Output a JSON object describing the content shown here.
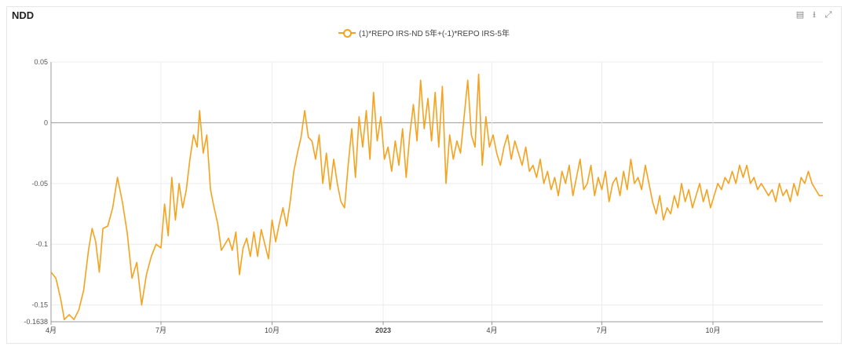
{
  "panel": {
    "title": "NDD",
    "tools": [
      {
        "name": "data-view-icon",
        "glyph": "▤"
      },
      {
        "name": "download-icon",
        "glyph": "⭳"
      },
      {
        "name": "expand-icon",
        "glyph": "⤢"
      }
    ]
  },
  "chart_data": {
    "type": "line",
    "title": "",
    "xlabel": "",
    "ylabel": "",
    "ylim": [
      -0.1638,
      0.05
    ],
    "y_ticks": [
      {
        "value": 0.05,
        "label": "0.05"
      },
      {
        "value": 0,
        "label": "0"
      },
      {
        "value": -0.05,
        "label": "-0.05"
      },
      {
        "value": -0.1,
        "label": "-0.1"
      },
      {
        "value": -0.15,
        "label": "-0.15"
      },
      {
        "value": -0.1638,
        "label": "-0.1638"
      }
    ],
    "x_range": [
      "2022-04-01",
      "2023-12-31"
    ],
    "x_ticks": [
      {
        "date": "2022-04-01",
        "label": "4月",
        "bold": false
      },
      {
        "date": "2022-07-01",
        "label": "7月",
        "bold": false
      },
      {
        "date": "2022-10-01",
        "label": "10月",
        "bold": false
      },
      {
        "date": "2023-01-01",
        "label": "2023",
        "bold": true
      },
      {
        "date": "2023-04-01",
        "label": "4月",
        "bold": false
      },
      {
        "date": "2023-07-01",
        "label": "7月",
        "bold": false
      },
      {
        "date": "2023-10-01",
        "label": "10月",
        "bold": false
      }
    ],
    "grid": true,
    "legend_position": "top-center",
    "series": [
      {
        "name": "(1)*REPO IRS-ND 5年+(-1)*REPO IRS-5年",
        "color": "#f5a21e",
        "points": [
          [
            "2022-04-01",
            -0.123
          ],
          [
            "2022-04-05",
            -0.128
          ],
          [
            "2022-04-09",
            -0.145
          ],
          [
            "2022-04-12",
            -0.162
          ],
          [
            "2022-04-16",
            -0.158
          ],
          [
            "2022-04-20",
            -0.162
          ],
          [
            "2022-04-24",
            -0.154
          ],
          [
            "2022-04-28",
            -0.138
          ],
          [
            "2022-05-02",
            -0.105
          ],
          [
            "2022-05-05",
            -0.087
          ],
          [
            "2022-05-08",
            -0.098
          ],
          [
            "2022-05-11",
            -0.123
          ],
          [
            "2022-05-14",
            -0.087
          ],
          [
            "2022-05-18",
            -0.085
          ],
          [
            "2022-05-22",
            -0.07
          ],
          [
            "2022-05-26",
            -0.045
          ],
          [
            "2022-05-30",
            -0.065
          ],
          [
            "2022-06-03",
            -0.09
          ],
          [
            "2022-06-07",
            -0.128
          ],
          [
            "2022-06-11",
            -0.115
          ],
          [
            "2022-06-15",
            -0.15
          ],
          [
            "2022-06-19",
            -0.125
          ],
          [
            "2022-06-23",
            -0.11
          ],
          [
            "2022-06-27",
            -0.1
          ],
          [
            "2022-07-01",
            -0.103
          ],
          [
            "2022-07-04",
            -0.067
          ],
          [
            "2022-07-07",
            -0.093
          ],
          [
            "2022-07-10",
            -0.045
          ],
          [
            "2022-07-13",
            -0.08
          ],
          [
            "2022-07-16",
            -0.05
          ],
          [
            "2022-07-19",
            -0.07
          ],
          [
            "2022-07-22",
            -0.055
          ],
          [
            "2022-07-25",
            -0.03
          ],
          [
            "2022-07-28",
            -0.01
          ],
          [
            "2022-07-31",
            -0.02
          ],
          [
            "2022-08-02",
            0.01
          ],
          [
            "2022-08-05",
            -0.025
          ],
          [
            "2022-08-08",
            -0.01
          ],
          [
            "2022-08-11",
            -0.055
          ],
          [
            "2022-08-14",
            -0.07
          ],
          [
            "2022-08-17",
            -0.083
          ],
          [
            "2022-08-20",
            -0.105
          ],
          [
            "2022-08-23",
            -0.1
          ],
          [
            "2022-08-26",
            -0.095
          ],
          [
            "2022-08-29",
            -0.105
          ],
          [
            "2022-09-01",
            -0.09
          ],
          [
            "2022-09-04",
            -0.125
          ],
          [
            "2022-09-07",
            -0.103
          ],
          [
            "2022-09-10",
            -0.095
          ],
          [
            "2022-09-13",
            -0.11
          ],
          [
            "2022-09-16",
            -0.09
          ],
          [
            "2022-09-19",
            -0.11
          ],
          [
            "2022-09-22",
            -0.088
          ],
          [
            "2022-09-25",
            -0.1
          ],
          [
            "2022-09-28",
            -0.112
          ],
          [
            "2022-10-01",
            -0.08
          ],
          [
            "2022-10-04",
            -0.098
          ],
          [
            "2022-10-07",
            -0.083
          ],
          [
            "2022-10-10",
            -0.07
          ],
          [
            "2022-10-13",
            -0.085
          ],
          [
            "2022-10-16",
            -0.065
          ],
          [
            "2022-10-19",
            -0.04
          ],
          [
            "2022-10-22",
            -0.025
          ],
          [
            "2022-10-25",
            -0.012
          ],
          [
            "2022-10-28",
            0.01
          ],
          [
            "2022-10-31",
            -0.012
          ],
          [
            "2022-11-03",
            -0.015
          ],
          [
            "2022-11-06",
            -0.03
          ],
          [
            "2022-11-09",
            -0.01
          ],
          [
            "2022-11-12",
            -0.05
          ],
          [
            "2022-11-15",
            -0.025
          ],
          [
            "2022-11-18",
            -0.055
          ],
          [
            "2022-11-21",
            -0.03
          ],
          [
            "2022-11-24",
            -0.05
          ],
          [
            "2022-11-27",
            -0.065
          ],
          [
            "2022-11-30",
            -0.07
          ],
          [
            "2022-12-03",
            -0.035
          ],
          [
            "2022-12-06",
            -0.005
          ],
          [
            "2022-12-09",
            -0.045
          ],
          [
            "2022-12-12",
            0.005
          ],
          [
            "2022-12-15",
            -0.02
          ],
          [
            "2022-12-18",
            0.01
          ],
          [
            "2022-12-21",
            -0.03
          ],
          [
            "2022-12-24",
            0.025
          ],
          [
            "2022-12-27",
            -0.015
          ],
          [
            "2022-12-30",
            0.005
          ],
          [
            "2023-01-02",
            -0.03
          ],
          [
            "2023-01-05",
            -0.02
          ],
          [
            "2023-01-08",
            -0.04
          ],
          [
            "2023-01-11",
            -0.015
          ],
          [
            "2023-01-14",
            -0.035
          ],
          [
            "2023-01-17",
            -0.005
          ],
          [
            "2023-01-20",
            -0.045
          ],
          [
            "2023-01-23",
            -0.01
          ],
          [
            "2023-01-26",
            0.015
          ],
          [
            "2023-01-29",
            -0.015
          ],
          [
            "2023-02-01",
            0.035
          ],
          [
            "2023-02-04",
            -0.005
          ],
          [
            "2023-02-07",
            0.02
          ],
          [
            "2023-02-10",
            -0.015
          ],
          [
            "2023-02-13",
            0.025
          ],
          [
            "2023-02-16",
            -0.02
          ],
          [
            "2023-02-19",
            0.03
          ],
          [
            "2023-02-22",
            -0.05
          ],
          [
            "2023-02-25",
            -0.01
          ],
          [
            "2023-02-28",
            -0.03
          ],
          [
            "2023-03-03",
            -0.015
          ],
          [
            "2023-03-06",
            -0.025
          ],
          [
            "2023-03-09",
            0.005
          ],
          [
            "2023-03-12",
            0.035
          ],
          [
            "2023-03-15",
            -0.01
          ],
          [
            "2023-03-18",
            -0.02
          ],
          [
            "2023-03-21",
            0.04
          ],
          [
            "2023-03-24",
            -0.035
          ],
          [
            "2023-03-27",
            0.005
          ],
          [
            "2023-03-30",
            -0.02
          ],
          [
            "2023-04-02",
            -0.01
          ],
          [
            "2023-04-05",
            -0.025
          ],
          [
            "2023-04-08",
            -0.035
          ],
          [
            "2023-04-11",
            -0.02
          ],
          [
            "2023-04-14",
            -0.01
          ],
          [
            "2023-04-17",
            -0.03
          ],
          [
            "2023-04-20",
            -0.015
          ],
          [
            "2023-04-23",
            -0.025
          ],
          [
            "2023-04-26",
            -0.035
          ],
          [
            "2023-04-29",
            -0.02
          ],
          [
            "2023-05-02",
            -0.04
          ],
          [
            "2023-05-05",
            -0.035
          ],
          [
            "2023-05-08",
            -0.045
          ],
          [
            "2023-05-11",
            -0.03
          ],
          [
            "2023-05-14",
            -0.05
          ],
          [
            "2023-05-17",
            -0.04
          ],
          [
            "2023-05-20",
            -0.055
          ],
          [
            "2023-05-23",
            -0.045
          ],
          [
            "2023-05-26",
            -0.06
          ],
          [
            "2023-05-29",
            -0.04
          ],
          [
            "2023-06-01",
            -0.05
          ],
          [
            "2023-06-04",
            -0.035
          ],
          [
            "2023-06-07",
            -0.06
          ],
          [
            "2023-06-10",
            -0.045
          ],
          [
            "2023-06-13",
            -0.03
          ],
          [
            "2023-06-16",
            -0.055
          ],
          [
            "2023-06-19",
            -0.05
          ],
          [
            "2023-06-22",
            -0.035
          ],
          [
            "2023-06-25",
            -0.06
          ],
          [
            "2023-06-28",
            -0.045
          ],
          [
            "2023-07-01",
            -0.055
          ],
          [
            "2023-07-04",
            -0.04
          ],
          [
            "2023-07-07",
            -0.065
          ],
          [
            "2023-07-10",
            -0.05
          ],
          [
            "2023-07-13",
            -0.045
          ],
          [
            "2023-07-16",
            -0.06
          ],
          [
            "2023-07-19",
            -0.04
          ],
          [
            "2023-07-22",
            -0.055
          ],
          [
            "2023-07-25",
            -0.03
          ],
          [
            "2023-07-28",
            -0.05
          ],
          [
            "2023-07-31",
            -0.045
          ],
          [
            "2023-08-03",
            -0.055
          ],
          [
            "2023-08-06",
            -0.035
          ],
          [
            "2023-08-09",
            -0.05
          ],
          [
            "2023-08-12",
            -0.065
          ],
          [
            "2023-08-15",
            -0.075
          ],
          [
            "2023-08-18",
            -0.06
          ],
          [
            "2023-08-21",
            -0.08
          ],
          [
            "2023-08-24",
            -0.07
          ],
          [
            "2023-08-27",
            -0.075
          ],
          [
            "2023-08-30",
            -0.06
          ],
          [
            "2023-09-02",
            -0.07
          ],
          [
            "2023-09-05",
            -0.05
          ],
          [
            "2023-09-08",
            -0.065
          ],
          [
            "2023-09-11",
            -0.055
          ],
          [
            "2023-09-14",
            -0.07
          ],
          [
            "2023-09-17",
            -0.06
          ],
          [
            "2023-09-20",
            -0.05
          ],
          [
            "2023-09-23",
            -0.065
          ],
          [
            "2023-09-26",
            -0.055
          ],
          [
            "2023-09-29",
            -0.07
          ],
          [
            "2023-10-02",
            -0.06
          ],
          [
            "2023-10-05",
            -0.05
          ],
          [
            "2023-10-08",
            -0.055
          ],
          [
            "2023-10-11",
            -0.045
          ],
          [
            "2023-10-14",
            -0.05
          ],
          [
            "2023-10-17",
            -0.04
          ],
          [
            "2023-10-20",
            -0.05
          ],
          [
            "2023-10-23",
            -0.035
          ],
          [
            "2023-10-26",
            -0.045
          ],
          [
            "2023-10-29",
            -0.035
          ],
          [
            "2023-11-01",
            -0.05
          ],
          [
            "2023-11-04",
            -0.045
          ],
          [
            "2023-11-07",
            -0.055
          ],
          [
            "2023-11-10",
            -0.05
          ],
          [
            "2023-11-13",
            -0.055
          ],
          [
            "2023-11-16",
            -0.06
          ],
          [
            "2023-11-19",
            -0.055
          ],
          [
            "2023-11-22",
            -0.065
          ],
          [
            "2023-11-25",
            -0.05
          ],
          [
            "2023-11-28",
            -0.06
          ],
          [
            "2023-12-01",
            -0.055
          ],
          [
            "2023-12-04",
            -0.065
          ],
          [
            "2023-12-07",
            -0.05
          ],
          [
            "2023-12-10",
            -0.06
          ],
          [
            "2023-12-13",
            -0.045
          ],
          [
            "2023-12-16",
            -0.05
          ],
          [
            "2023-12-19",
            -0.04
          ],
          [
            "2023-12-22",
            -0.05
          ],
          [
            "2023-12-25",
            -0.055
          ],
          [
            "2023-12-28",
            -0.06
          ],
          [
            "2023-12-31",
            -0.06
          ]
        ]
      }
    ]
  }
}
